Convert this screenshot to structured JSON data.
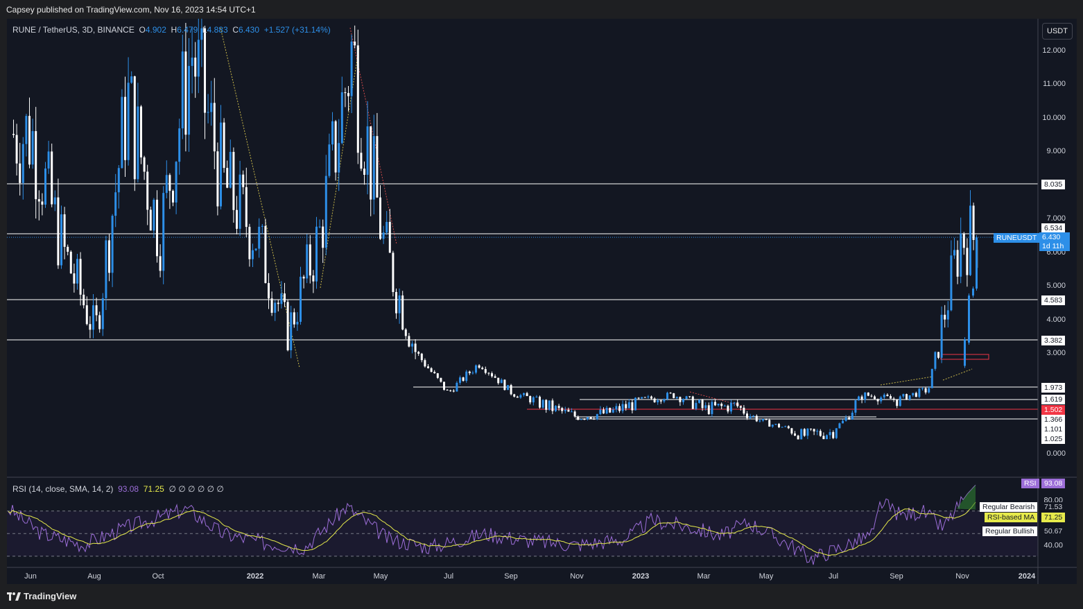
{
  "publisher_line": "Capsey published on TradingView.com, Nov 16, 2023 14:54 UTC+1",
  "footer_brand": "TradingView",
  "currency_button": "USDT",
  "legend": {
    "symbol": "RUNE / TetherUS, 3D, BINANCE",
    "o_label": "O",
    "o_value": "4.902",
    "h_label": "H",
    "h_value": "6.479",
    "l_label": "L",
    "l_value": "4.883",
    "c_label": "C",
    "c_value": "6.430",
    "change": "+1.527 (+31.14%)"
  },
  "rsi_legend": {
    "label": "RSI (14, close, SMA, 14, 2)",
    "rsi_value": "93.08",
    "ma_value": "71.25",
    "empties": "∅ ∅ ∅ ∅ ∅ ∅"
  },
  "price_labels": {
    "ticker": "RUNEUSDT",
    "last": "6.430",
    "countdown": "1d 11h",
    "levels": [
      "8.035",
      "6.534",
      "4.583",
      "3.382",
      "1.973",
      "1.619",
      "1.502",
      "1.366",
      "1.101",
      "1.025"
    ]
  },
  "rsi_tags": {
    "rsi_tag": "RSI",
    "rsi_val": "93.08",
    "bearish_label": "Regular Bearish",
    "bearish_val": "71.53",
    "ma_label": "RSI-based MA",
    "ma_val": "71.25",
    "bullish_label": "Regular Bullish",
    "bullish_val": "50.67"
  },
  "colors": {
    "background": "#131722",
    "bull_candle": "#2d8fe8",
    "bear_candle": "#ffffff",
    "rsi_line": "#9c6ed8",
    "rsi_ma": "#e6ea4b",
    "support_red": "#f23645"
  },
  "chart_data": [
    {
      "type": "candlestick",
      "symbol": "RUNE / TetherUS",
      "interval": "3D",
      "exchange": "BINANCE",
      "y_axis_ticks": [
        "12.000",
        "11.000",
        "10.000",
        "9.000",
        "7.000",
        "6.000",
        "5.000",
        "4.000",
        "3.000",
        "0.000"
      ],
      "x_axis_ticks": [
        "Jun",
        "Aug",
        "Oct",
        "2022",
        "Mar",
        "May",
        "Jul",
        "Sep",
        "Nov",
        "2023",
        "Mar",
        "May",
        "Jul",
        "Sep",
        "Nov",
        "2024"
      ],
      "last_close": 6.43,
      "horizontal_levels": [
        8.035,
        6.534,
        4.583,
        3.382,
        1.973,
        1.619,
        1.502,
        1.366,
        1.101,
        1.025
      ],
      "approx_close_path": [
        {
          "x": "Jun 2021",
          "y": 9.5
        },
        {
          "x": "Jul 2021",
          "y": 6.0
        },
        {
          "x": "Aug 2021",
          "y": 3.6
        },
        {
          "x": "Sep 2021",
          "y": 10.5
        },
        {
          "x": "Oct 2021",
          "y": 6.5
        },
        {
          "x": "Nov 2021",
          "y": 12.0
        },
        {
          "x": "Dec 2021",
          "y": 8.0
        },
        {
          "x": "Jan 2022",
          "y": 6.5
        },
        {
          "x": "Feb 2022",
          "y": 3.6
        },
        {
          "x": "Mar 2022",
          "y": 6.5
        },
        {
          "x": "Apr 2022",
          "y": 12.0
        },
        {
          "x": "May 2022",
          "y": 6.2
        },
        {
          "x": "Jun 2022",
          "y": 3.0
        },
        {
          "x": "Jul 2022",
          "y": 1.8
        },
        {
          "x": "Aug 2022",
          "y": 2.7
        },
        {
          "x": "Sep 2022",
          "y": 1.8
        },
        {
          "x": "Oct 2022",
          "y": 1.55
        },
        {
          "x": "Nov 2022",
          "y": 1.4
        },
        {
          "x": "Dec 2022",
          "y": 1.45
        },
        {
          "x": "Jan 2023",
          "y": 1.6
        },
        {
          "x": "Feb 2023",
          "y": 1.75
        },
        {
          "x": "Mar 2023",
          "y": 1.5
        },
        {
          "x": "Apr 2023",
          "y": 1.55
        },
        {
          "x": "May 2023",
          "y": 1.25
        },
        {
          "x": "Jun 2023",
          "y": 1.05
        },
        {
          "x": "Jul 2023",
          "y": 1.08
        },
        {
          "x": "Aug 2023",
          "y": 1.75
        },
        {
          "x": "Sep 2023",
          "y": 1.62
        },
        {
          "x": "Oct 2023",
          "y": 1.9
        },
        {
          "x": "Nov 2023",
          "y": 6.43
        }
      ]
    },
    {
      "type": "line",
      "name": "RSI (14, close, SMA, 14, 2)",
      "y_axis_ticks": [
        "80.00",
        "40.00"
      ],
      "bands": [
        70,
        50,
        30
      ],
      "last_rsi": 93.08,
      "last_ma": 71.25,
      "regular_bearish": 71.53,
      "regular_bullish": 50.67
    }
  ]
}
